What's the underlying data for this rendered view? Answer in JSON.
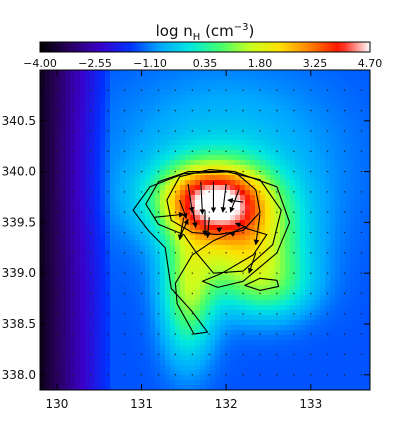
{
  "chart_data": {
    "type": "heatmap",
    "title": "log n",
    "title_sub": "H",
    "title_unit_open": " (cm",
    "title_unit_exp": "−3",
    "title_unit_close": ")",
    "colorbar": {
      "min": -4.0,
      "max": 4.7,
      "tick_labels": [
        "−4.00",
        "−2.55",
        "−1.10",
        "0.35",
        "1.80",
        "3.25",
        "4.70"
      ],
      "tick_values": [
        -4.0,
        -2.55,
        -1.1,
        0.35,
        1.8,
        3.25,
        4.7
      ],
      "colormap": [
        "#000000",
        "#2a0060",
        "#3b00c8",
        "#0030ff",
        "#00a8ff",
        "#00e8e0",
        "#40ff70",
        "#c8ff20",
        "#ffe000",
        "#ff8000",
        "#ff1000",
        "#ffffff"
      ]
    },
    "xlim": [
      129.8,
      133.7
    ],
    "ylim": [
      337.85,
      341.0
    ],
    "x_ticks": [
      130,
      131,
      132,
      133
    ],
    "x_tick_labels": [
      "130",
      "131",
      "132",
      "133"
    ],
    "y_ticks": [
      338.0,
      338.5,
      339.0,
      339.5,
      340.0,
      340.5
    ],
    "y_tick_labels": [
      "338.0",
      "338.5",
      "339.0",
      "339.5",
      "340.0",
      "340.5"
    ],
    "grid": false,
    "contours": [
      [
        [
          131.45,
          339.95
        ],
        [
          131.8,
          340.02
        ],
        [
          132.1,
          340.0
        ],
        [
          132.35,
          339.82
        ],
        [
          132.4,
          339.6
        ],
        [
          132.2,
          339.42
        ],
        [
          131.9,
          339.38
        ],
        [
          131.6,
          339.4
        ],
        [
          131.35,
          339.52
        ],
        [
          131.3,
          339.72
        ],
        [
          131.45,
          339.95
        ]
      ],
      [
        [
          131.05,
          339.68
        ],
        [
          131.2,
          339.9
        ],
        [
          131.55,
          340.0
        ],
        [
          132.0,
          340.0
        ],
        [
          132.4,
          339.92
        ],
        [
          132.65,
          339.62
        ],
        [
          132.55,
          339.28
        ],
        [
          132.2,
          339.02
        ],
        [
          131.85,
          339.0
        ],
        [
          131.65,
          339.2
        ],
        [
          131.5,
          339.38
        ],
        [
          131.2,
          339.48
        ],
        [
          131.05,
          339.68
        ]
      ],
      [
        [
          130.9,
          339.62
        ],
        [
          131.1,
          339.85
        ],
        [
          131.5,
          339.98
        ],
        [
          132.1,
          340.0
        ],
        [
          132.6,
          339.85
        ],
        [
          132.75,
          339.5
        ],
        [
          132.6,
          339.2
        ],
        [
          132.2,
          338.92
        ],
        [
          131.9,
          338.86
        ],
        [
          131.72,
          338.92
        ],
        [
          131.95,
          339.0
        ],
        [
          132.32,
          339.18
        ],
        [
          132.48,
          339.38
        ],
        [
          132.2,
          339.45
        ],
        [
          131.85,
          339.32
        ],
        [
          131.6,
          339.18
        ],
        [
          131.4,
          338.9
        ],
        [
          131.42,
          338.7
        ],
        [
          131.62,
          338.4
        ],
        [
          131.78,
          338.42
        ],
        [
          131.6,
          338.62
        ],
        [
          131.35,
          338.85
        ],
        [
          131.28,
          339.25
        ],
        [
          131.08,
          339.42
        ],
        [
          130.9,
          339.62
        ]
      ],
      [
        [
          132.22,
          338.88
        ],
        [
          132.4,
          338.95
        ],
        [
          132.6,
          338.93
        ],
        [
          132.62,
          338.87
        ],
        [
          132.4,
          338.83
        ],
        [
          132.22,
          338.88
        ]
      ]
    ],
    "density_field": {
      "background": -1.4,
      "left_gradient": {
        "x0": 129.8,
        "x1": 130.6,
        "v0": -3.8,
        "v1": -1.6
      },
      "blobs": [
        {
          "cx": 131.85,
          "cy": 339.72,
          "sx": 0.45,
          "sy": 0.25,
          "amp": 5.0
        },
        {
          "cx": 132.25,
          "cy": 339.25,
          "sx": 0.45,
          "sy": 0.35,
          "amp": 2.8
        },
        {
          "cx": 131.55,
          "cy": 338.8,
          "sx": 0.22,
          "sy": 0.45,
          "amp": 2.4
        },
        {
          "cx": 132.55,
          "cy": 338.85,
          "sx": 0.35,
          "sy": 0.22,
          "amp": 1.2
        },
        {
          "cx": 132.0,
          "cy": 340.1,
          "sx": 0.9,
          "sy": 0.6,
          "amp": 1.0
        }
      ]
    },
    "vectors": [
      {
        "x": 131.15,
        "y": 339.55,
        "dx": 0.35,
        "dy": 0.03
      },
      {
        "x": 131.55,
        "y": 339.88,
        "dx": 0.05,
        "dy": -0.28
      },
      {
        "x": 131.7,
        "y": 339.9,
        "dx": 0.02,
        "dy": -0.32
      },
      {
        "x": 131.85,
        "y": 339.9,
        "dx": 0.0,
        "dy": -0.3
      },
      {
        "x": 132.0,
        "y": 339.88,
        "dx": -0.04,
        "dy": -0.28
      },
      {
        "x": 132.15,
        "y": 339.82,
        "dx": -0.1,
        "dy": -0.22
      },
      {
        "x": 131.45,
        "y": 339.72,
        "dx": 0.08,
        "dy": -0.18
      },
      {
        "x": 131.6,
        "y": 339.65,
        "dx": 0.04,
        "dy": -0.2
      },
      {
        "x": 131.75,
        "y": 339.62,
        "dx": 0.0,
        "dy": -0.25
      },
      {
        "x": 131.5,
        "y": 339.55,
        "dx": -0.05,
        "dy": -0.22
      },
      {
        "x": 131.8,
        "y": 339.55,
        "dx": -0.02,
        "dy": -0.2
      },
      {
        "x": 132.2,
        "y": 339.7,
        "dx": -0.18,
        "dy": 0.02
      },
      {
        "x": 132.25,
        "y": 339.45,
        "dx": -0.14,
        "dy": 0.04
      },
      {
        "x": 131.9,
        "y": 339.42,
        "dx": 0.05,
        "dy": 0.03
      },
      {
        "x": 132.4,
        "y": 339.58,
        "dx": -0.05,
        "dy": -0.3
      },
      {
        "x": 131.45,
        "y": 339.35,
        "dx": 0.1,
        "dy": 0.18
      },
      {
        "x": 132.1,
        "y": 339.38,
        "dx": -0.06,
        "dy": 0.02
      },
      {
        "x": 132.35,
        "y": 339.2,
        "dx": -0.08,
        "dy": -0.2
      }
    ],
    "dots": {
      "x0": 130.0,
      "x1": 133.6,
      "dx": 0.2,
      "y0": 338.0,
      "y1": 340.9,
      "dy": 0.2
    }
  }
}
